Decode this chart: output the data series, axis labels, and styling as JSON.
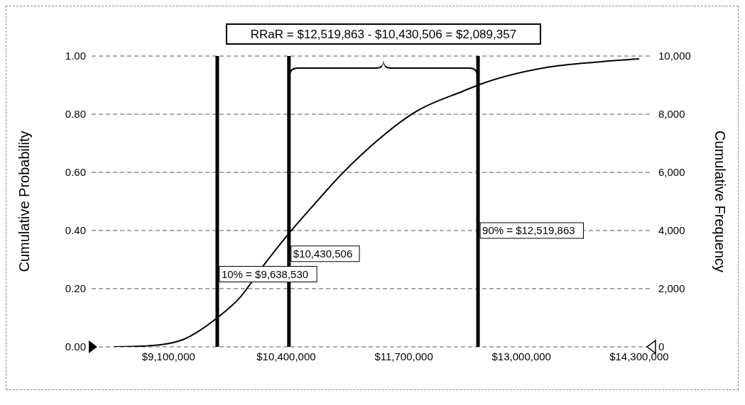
{
  "chart_data": {
    "type": "line",
    "xlabel": null,
    "ylabel": "Cumulative Probability",
    "y2label": "Cumulative Frequency",
    "annotations": [
      "RRaR = $12,519,863 - $10,430,506 = $2,089,357"
    ],
    "x": [
      8500000,
      8940000,
      9260000,
      9638530,
      9890000,
      10150000,
      10430506,
      10710000,
      11000000,
      11300000,
      11840000,
      12360000,
      12519863,
      13260000,
      13860000,
      14300000
    ],
    "series": [
      {
        "color": "#000000",
        "values": [
          0.0,
          0.005,
          0.025,
          0.1,
          0.17,
          0.28,
          0.39,
          0.49,
          0.59,
          0.68,
          0.81,
          0.88,
          0.9,
          0.96,
          0.98,
          0.99
        ]
      }
    ],
    "xlim": [
      8250000,
      14450000
    ],
    "xticks": [
      {
        "value": 9100000,
        "label": "$9,100,000"
      },
      {
        "value": 10400000,
        "label": "$10,400,000"
      },
      {
        "value": 11700000,
        "label": "$11,700,000"
      },
      {
        "value": 13000000,
        "label": "$13,000,000"
      },
      {
        "value": 14300000,
        "label": "$14,300,000"
      }
    ],
    "ylim": [
      0,
      1
    ],
    "yticks": [
      {
        "value": 0,
        "label": "0.00"
      },
      {
        "value": 0.2,
        "label": "0.20"
      },
      {
        "value": 0.4,
        "label": "0.40"
      },
      {
        "value": 0.6,
        "label": "0.60"
      },
      {
        "value": 0.8,
        "label": "0.80"
      },
      {
        "value": 1,
        "label": "1.00"
      }
    ],
    "y2lim": [
      0,
      10000
    ],
    "y2ticks": [
      0,
      {
        "value": 2000,
        "label": "2,000"
      },
      {
        "value": 4000,
        "label": "4,000"
      },
      {
        "value": 6000,
        "label": "6,000"
      },
      {
        "value": 8000,
        "label": "8,000"
      },
      {
        "value": 10000,
        "label": "10,000"
      }
    ],
    "ref_lines": [
      {
        "axis": "x",
        "value": 9638530,
        "label": "10% = $9,638,530",
        "color": "#000000"
      },
      {
        "axis": "x",
        "value": 10430506,
        "label": "$10,430,506",
        "color": "#000000"
      },
      {
        "axis": "x",
        "value": 12519863,
        "label": "90% = $12,519,863",
        "color": "#000000"
      }
    ],
    "grid": "y",
    "legend": false,
    "marker": "none",
    "line_style": "solid"
  }
}
